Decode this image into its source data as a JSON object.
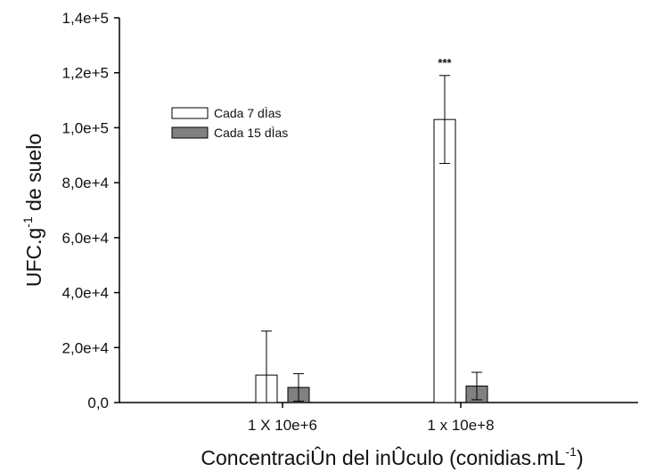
{
  "chart_data": {
    "type": "bar",
    "title": "",
    "xlabel": "ConcentraciÛn del inÛculo (conidias.mL",
    "xlabel_superscript": "-1",
    "xlabel_suffix": ")",
    "ylabel_prefix": "UFC.g",
    "ylabel_superscript": "-1",
    "ylabel_suffix": " de suelo",
    "categories": [
      "1 X 10e+6",
      "1 x 10e+8"
    ],
    "ylim": [
      0,
      140000
    ],
    "yticks": [
      0,
      20000,
      40000,
      60000,
      80000,
      100000,
      120000,
      140000
    ],
    "ytick_labels": [
      "0,0",
      "2,0e+4",
      "4,0e+4",
      "6,0e+4",
      "8,0e+4",
      "1,0e+5",
      "1,2e+5",
      "1,4e+5"
    ],
    "grid": false,
    "legend_position": "upper-left",
    "series": [
      {
        "name": "Cada 7 dÌas",
        "color": "#ffffff",
        "values": [
          10000,
          103000
        ],
        "error": [
          16000,
          16000
        ]
      },
      {
        "name": "Cada 15 dÌas",
        "color": "#808080",
        "values": [
          5500,
          6000
        ],
        "error": [
          5000,
          5000
        ]
      }
    ],
    "annotations": [
      {
        "category": "1 x 10e+8",
        "series": "Cada 7 dÌas",
        "text": "***"
      }
    ]
  }
}
